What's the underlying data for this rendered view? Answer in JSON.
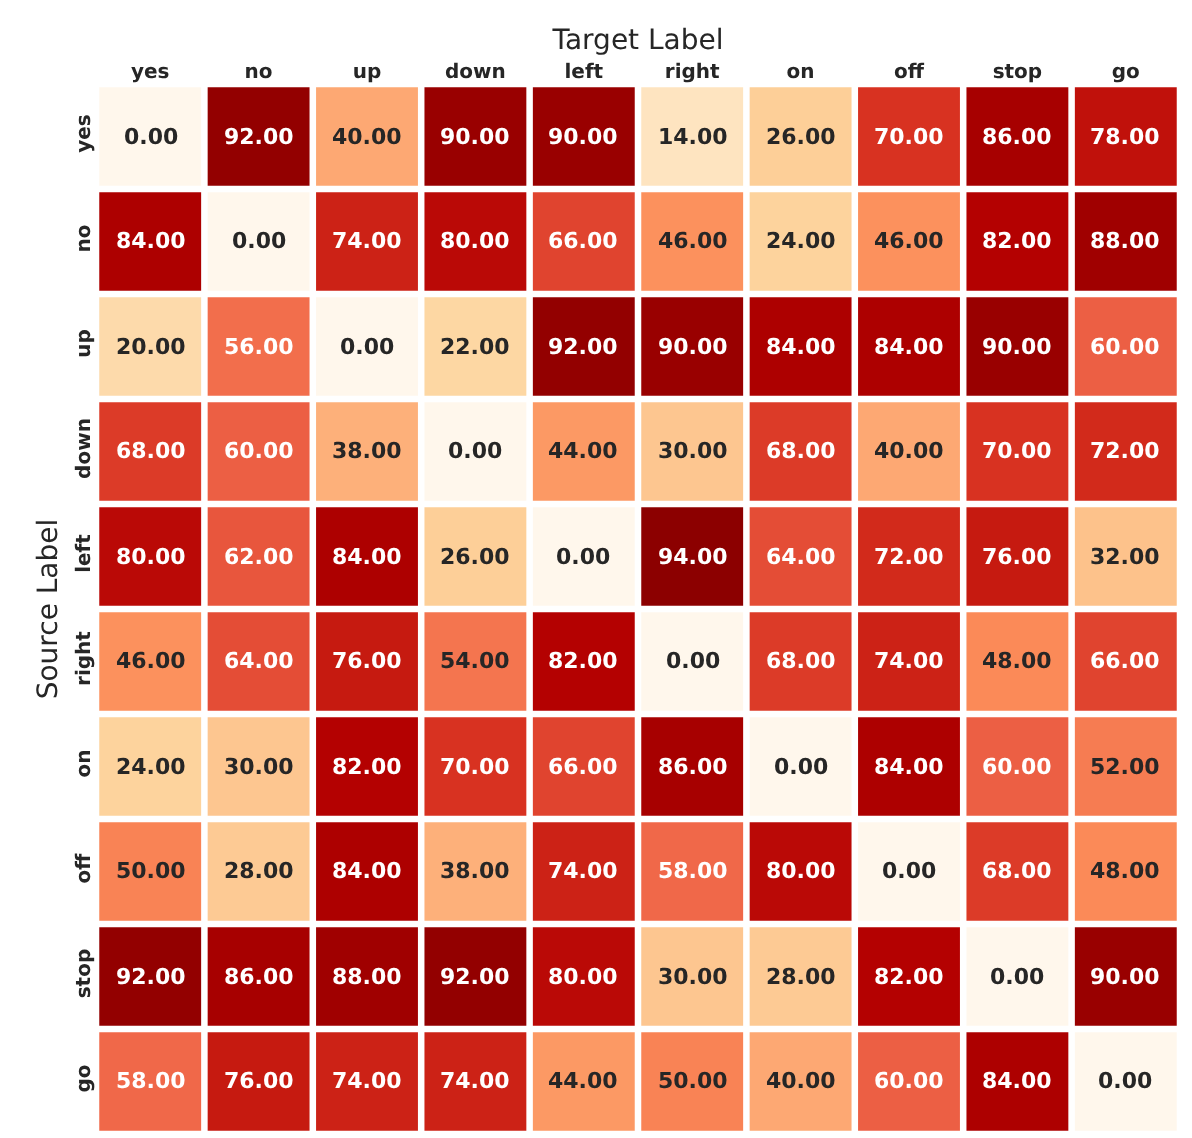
{
  "chart_data": {
    "type": "heatmap",
    "xlabel": "Target Label",
    "ylabel": "Source Label",
    "categories": [
      "yes",
      "no",
      "up",
      "down",
      "left",
      "right",
      "on",
      "off",
      "stop",
      "go"
    ],
    "y_categories": [
      "yes",
      "no",
      "up",
      "down",
      "left",
      "right",
      "on",
      "off",
      "stop",
      "go"
    ],
    "cells": [
      [
        0,
        92,
        40,
        90,
        90,
        14,
        26,
        70,
        86,
        78
      ],
      [
        84,
        0,
        74,
        80,
        66,
        46,
        24,
        46,
        82,
        88
      ],
      [
        20,
        56,
        0,
        22,
        92,
        90,
        84,
        84,
        90,
        60
      ],
      [
        68,
        60,
        38,
        0,
        44,
        30,
        68,
        40,
        70,
        72
      ],
      [
        80,
        62,
        84,
        26,
        0,
        94,
        64,
        72,
        76,
        32
      ],
      [
        46,
        64,
        76,
        54,
        82,
        0,
        68,
        74,
        48,
        66
      ],
      [
        24,
        30,
        82,
        70,
        66,
        86,
        0,
        84,
        60,
        52
      ],
      [
        50,
        28,
        84,
        38,
        74,
        58,
        80,
        0,
        68,
        48
      ],
      [
        92,
        86,
        88,
        92,
        80,
        30,
        28,
        82,
        0,
        90
      ],
      [
        58,
        76,
        74,
        74,
        44,
        50,
        40,
        60,
        84,
        0
      ]
    ],
    "cell_labels": [
      [
        "0.00",
        "92.00",
        "40.00",
        "90.00",
        "90.00",
        "14.00",
        "26.00",
        "70.00",
        "86.00",
        "78.00"
      ],
      [
        "84.00",
        "0.00",
        "74.00",
        "80.00",
        "66.00",
        "46.00",
        "24.00",
        "46.00",
        "82.00",
        "88.00"
      ],
      [
        "20.00",
        "56.00",
        "0.00",
        "22.00",
        "92.00",
        "90.00",
        "84.00",
        "84.00",
        "90.00",
        "60.00"
      ],
      [
        "68.00",
        "60.00",
        "38.00",
        "0.00",
        "44.00",
        "30.00",
        "68.00",
        "40.00",
        "70.00",
        "72.00"
      ],
      [
        "80.00",
        "62.00",
        "84.00",
        "26.00",
        "0.00",
        "94.00",
        "64.00",
        "72.00",
        "76.00",
        "32.00"
      ],
      [
        "46.00",
        "64.00",
        "76.00",
        "54.00",
        "82.00",
        "0.00",
        "68.00",
        "74.00",
        "48.00",
        "66.00"
      ],
      [
        "24.00",
        "30.00",
        "82.00",
        "70.00",
        "66.00",
        "86.00",
        "0.00",
        "84.00",
        "60.00",
        "52.00"
      ],
      [
        "50.00",
        "28.00",
        "84.00",
        "38.00",
        "74.00",
        "58.00",
        "80.00",
        "0.00",
        "68.00",
        "48.00"
      ],
      [
        "92.00",
        "86.00",
        "88.00",
        "92.00",
        "80.00",
        "30.00",
        "28.00",
        "82.00",
        "0.00",
        "90.00"
      ],
      [
        "58.00",
        "76.00",
        "74.00",
        "74.00",
        "44.00",
        "50.00",
        "40.00",
        "60.00",
        "84.00",
        "0.00"
      ]
    ]
  }
}
